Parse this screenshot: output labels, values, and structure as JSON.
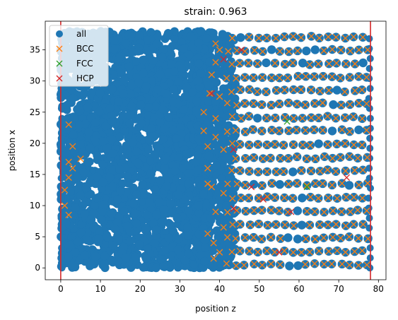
{
  "chart_data": {
    "type": "scatter",
    "title": "strain: 0.963",
    "xlabel": "position z",
    "ylabel": "position x",
    "xlim": [
      -3.9,
      81.9
    ],
    "ylim": [
      -1.9,
      39.6
    ],
    "xticks": [
      0,
      10,
      20,
      30,
      40,
      50,
      60,
      70,
      80
    ],
    "yticks": [
      0,
      5,
      10,
      15,
      20,
      25,
      30,
      35
    ],
    "legend_position": "upper-left",
    "vertical_lines": [
      0,
      78
    ],
    "vertical_line_color": "#d62728",
    "series": [
      {
        "name": "all",
        "marker": "circle",
        "color": "#1f77b4",
        "description_extent": {
          "z": [
            0,
            78
          ],
          "x": [
            0,
            38
          ]
        }
      },
      {
        "name": "BCC",
        "marker": "x",
        "color": "#ff7f0e",
        "points": [
          [
            1,
            12.5
          ],
          [
            1,
            10
          ],
          [
            2,
            23
          ],
          [
            2,
            17
          ],
          [
            2,
            14.5
          ],
          [
            2,
            8.5
          ],
          [
            3,
            19.5
          ],
          [
            3,
            16
          ],
          [
            5,
            17.5
          ],
          [
            36,
            25
          ],
          [
            36,
            22
          ],
          [
            37,
            19.5
          ],
          [
            37,
            16
          ],
          [
            37,
            13.5
          ],
          [
            37,
            5.5
          ],
          [
            37.5,
            28
          ],
          [
            38,
            31
          ],
          [
            38,
            13
          ],
          [
            38.5,
            1.5
          ],
          [
            38.5,
            4
          ],
          [
            39,
            36
          ],
          [
            39,
            33
          ],
          [
            39,
            24
          ],
          [
            39,
            21
          ],
          [
            39,
            9
          ],
          [
            40,
            27.5
          ],
          [
            40,
            2.5
          ],
          [
            40,
            35
          ],
          [
            41,
            19
          ],
          [
            41,
            12
          ],
          [
            41,
            6.5
          ]
        ]
      },
      {
        "name": "FCC",
        "marker": "x",
        "color": "#2ca02c",
        "points": [
          [
            57,
            23.5
          ],
          [
            62,
            13
          ]
        ]
      },
      {
        "name": "HCP",
        "marker": "x",
        "color": "#d62728",
        "points": [
          [
            38,
            28
          ],
          [
            41,
            33.5
          ],
          [
            43.5,
            19
          ],
          [
            43.5,
            9.5
          ],
          [
            45.5,
            35
          ],
          [
            48,
            13
          ],
          [
            51,
            11
          ],
          [
            55,
            2.5
          ],
          [
            58,
            9
          ],
          [
            72,
            14.5
          ]
        ]
      }
    ],
    "bcc_lattice_region": {
      "z": [
        42,
        78
      ],
      "x": [
        0.5,
        37.8
      ]
    }
  }
}
